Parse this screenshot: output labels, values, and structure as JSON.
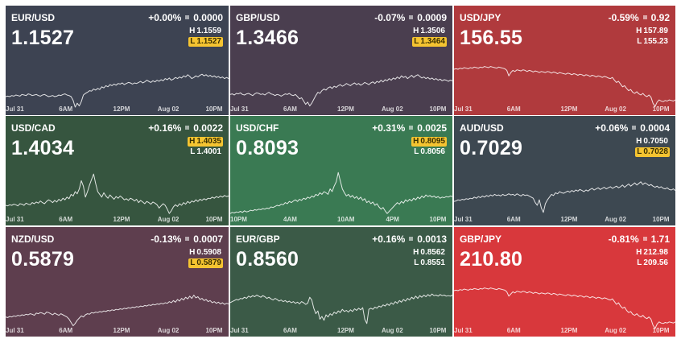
{
  "tiles": [
    {
      "pair": "EUR/USD",
      "change_pct": "+0.00%",
      "change_abs": "0.0000",
      "price": "1.1527",
      "high": "1.1559",
      "low": "1.1527",
      "marked": "low",
      "bg": "#3d4352",
      "series": [
        0.22,
        0.23,
        0.22,
        0.24,
        0.23,
        0.25,
        0.24,
        0.23,
        0.26,
        0.25,
        0.24,
        0.27,
        0.26,
        0.24,
        0.25,
        0.26,
        0.24,
        0.23,
        0.25,
        0.26,
        0.24,
        0.22,
        0.23,
        0.24,
        0.22,
        0.23,
        0.25,
        0.24,
        0.26,
        0.27,
        0.25,
        0.24,
        0.22,
        0.15,
        0.03,
        0.1,
        0.05,
        0.13,
        0.25,
        0.28,
        0.3,
        0.33,
        0.32,
        0.36,
        0.34,
        0.37,
        0.35,
        0.4,
        0.38,
        0.42,
        0.4,
        0.44,
        0.42,
        0.45,
        0.43,
        0.46,
        0.45,
        0.47,
        0.44,
        0.46,
        0.48,
        0.47,
        0.45,
        0.47,
        0.46,
        0.48,
        0.5,
        0.47,
        0.49,
        0.52,
        0.5,
        0.48,
        0.51,
        0.49,
        0.52,
        0.5,
        0.53,
        0.51,
        0.55,
        0.53,
        0.56,
        0.52,
        0.54,
        0.57,
        0.55,
        0.58,
        0.56,
        0.6,
        0.58,
        0.62,
        0.59,
        0.55,
        0.57,
        0.6,
        0.58,
        0.61,
        0.63,
        0.6,
        0.62,
        0.59,
        0.61,
        0.58,
        0.6,
        0.57,
        0.59,
        0.56,
        0.58,
        0.55,
        0.57,
        0.55
      ],
      "xlabels": [
        "Jul 31",
        "6AM",
        "12PM",
        "Aug 02",
        "10PM"
      ]
    },
    {
      "pair": "GBP/USD",
      "change_pct": "-0.07%",
      "change_abs": "0.0009",
      "price": "1.3466",
      "high": "1.3506",
      "low": "1.3464",
      "marked": "low",
      "bg": "#4a3e4f",
      "series": [
        0.26,
        0.27,
        0.25,
        0.28,
        0.27,
        0.29,
        0.26,
        0.25,
        0.27,
        0.28,
        0.26,
        0.24,
        0.27,
        0.29,
        0.28,
        0.26,
        0.27,
        0.25,
        0.28,
        0.3,
        0.27,
        0.26,
        0.24,
        0.26,
        0.25,
        0.23,
        0.25,
        0.27,
        0.26,
        0.28,
        0.25,
        0.24,
        0.26,
        0.22,
        0.18,
        0.2,
        0.14,
        0.08,
        0.12,
        0.05,
        0.1,
        0.17,
        0.24,
        0.3,
        0.28,
        0.33,
        0.36,
        0.34,
        0.38,
        0.4,
        0.37,
        0.41,
        0.39,
        0.42,
        0.44,
        0.41,
        0.43,
        0.46,
        0.44,
        0.42,
        0.45,
        0.47,
        0.44,
        0.46,
        0.43,
        0.45,
        0.48,
        0.46,
        0.44,
        0.47,
        0.49,
        0.46,
        0.5,
        0.48,
        0.52,
        0.49,
        0.53,
        0.51,
        0.55,
        0.52,
        0.56,
        0.54,
        0.58,
        0.55,
        0.6,
        0.57,
        0.59,
        0.55,
        0.58,
        0.61,
        0.57,
        0.6,
        0.62,
        0.59,
        0.56,
        0.58,
        0.55,
        0.57,
        0.54,
        0.56,
        0.53,
        0.55,
        0.52,
        0.54,
        0.51,
        0.53,
        0.52,
        0.5,
        0.52,
        0.51
      ],
      "xlabels": [
        "Jul 31",
        "6AM",
        "12PM",
        "Aug 02",
        "10PM"
      ]
    },
    {
      "pair": "USD/JPY",
      "change_pct": "-0.59%",
      "change_abs": "0.92",
      "price": "156.55",
      "high": "157.89",
      "low": "155.23",
      "marked": "none",
      "bg": "#b03a3d",
      "series": [
        0.72,
        0.73,
        0.72,
        0.74,
        0.73,
        0.75,
        0.74,
        0.73,
        0.75,
        0.74,
        0.76,
        0.75,
        0.74,
        0.76,
        0.75,
        0.77,
        0.76,
        0.75,
        0.77,
        0.76,
        0.75,
        0.74,
        0.76,
        0.75,
        0.74,
        0.73,
        0.7,
        0.6,
        0.66,
        0.7,
        0.68,
        0.71,
        0.7,
        0.69,
        0.71,
        0.7,
        0.68,
        0.7,
        0.69,
        0.67,
        0.69,
        0.68,
        0.66,
        0.68,
        0.67,
        0.66,
        0.68,
        0.67,
        0.65,
        0.67,
        0.66,
        0.64,
        0.66,
        0.65,
        0.64,
        0.63,
        0.65,
        0.64,
        0.62,
        0.64,
        0.63,
        0.61,
        0.63,
        0.62,
        0.6,
        0.62,
        0.61,
        0.59,
        0.61,
        0.6,
        0.58,
        0.6,
        0.59,
        0.57,
        0.59,
        0.58,
        0.56,
        0.55,
        0.57,
        0.52,
        0.48,
        0.5,
        0.45,
        0.4,
        0.42,
        0.37,
        0.33,
        0.35,
        0.3,
        0.28,
        0.31,
        0.27,
        0.25,
        0.28,
        0.24,
        0.22,
        0.25,
        0.21,
        0.1,
        0.04,
        0.12,
        0.16,
        0.14,
        0.13,
        0.15,
        0.14,
        0.16,
        0.15,
        0.14,
        0.16
      ],
      "xlabels": [
        "Jul 31",
        "6AM",
        "12PM",
        "Aug 02",
        "10PM"
      ]
    },
    {
      "pair": "USD/CAD",
      "change_pct": "+0.16%",
      "change_abs": "0.0022",
      "price": "1.4034",
      "high": "1.4035",
      "low": "1.4001",
      "marked": "high",
      "bg": "#36553f",
      "series": [
        0.25,
        0.24,
        0.26,
        0.25,
        0.27,
        0.26,
        0.24,
        0.28,
        0.27,
        0.25,
        0.29,
        0.27,
        0.26,
        0.3,
        0.28,
        0.31,
        0.29,
        0.33,
        0.3,
        0.28,
        0.32,
        0.35,
        0.33,
        0.3,
        0.34,
        0.31,
        0.36,
        0.33,
        0.38,
        0.35,
        0.4,
        0.37,
        0.45,
        0.42,
        0.5,
        0.46,
        0.55,
        0.7,
        0.6,
        0.4,
        0.5,
        0.62,
        0.72,
        0.82,
        0.65,
        0.5,
        0.45,
        0.4,
        0.48,
        0.42,
        0.38,
        0.44,
        0.4,
        0.36,
        0.41,
        0.38,
        0.42,
        0.39,
        0.35,
        0.37,
        0.34,
        0.38,
        0.36,
        0.33,
        0.36,
        0.3,
        0.34,
        0.31,
        0.28,
        0.32,
        0.3,
        0.27,
        0.31,
        0.29,
        0.26,
        0.2,
        0.24,
        0.28,
        0.25,
        0.18,
        0.1,
        0.15,
        0.22,
        0.26,
        0.23,
        0.28,
        0.25,
        0.3,
        0.27,
        0.32,
        0.29,
        0.33,
        0.31,
        0.35,
        0.32,
        0.36,
        0.34,
        0.37,
        0.35,
        0.38,
        0.37,
        0.4,
        0.38,
        0.41,
        0.39,
        0.42,
        0.4,
        0.43,
        0.41,
        0.42
      ],
      "xlabels": [
        "Jul 31",
        "6AM",
        "12PM",
        "Aug 02",
        "10PM"
      ]
    },
    {
      "pair": "USD/CHF",
      "change_pct": "+0.31%",
      "change_abs": "0.0025",
      "price": "0.8093",
      "high": "0.8095",
      "low": "0.8056",
      "marked": "high",
      "bg": "#3a7a53",
      "series": [
        0.1,
        0.12,
        0.11,
        0.13,
        0.12,
        0.14,
        0.12,
        0.15,
        0.13,
        0.14,
        0.16,
        0.15,
        0.17,
        0.16,
        0.18,
        0.17,
        0.19,
        0.18,
        0.2,
        0.19,
        0.22,
        0.21,
        0.23,
        0.25,
        0.24,
        0.27,
        0.26,
        0.3,
        0.28,
        0.32,
        0.3,
        0.33,
        0.35,
        0.32,
        0.36,
        0.34,
        0.38,
        0.36,
        0.4,
        0.38,
        0.42,
        0.4,
        0.45,
        0.43,
        0.48,
        0.45,
        0.5,
        0.48,
        0.45,
        0.55,
        0.5,
        0.6,
        0.68,
        0.85,
        0.7,
        0.55,
        0.48,
        0.42,
        0.45,
        0.4,
        0.43,
        0.38,
        0.41,
        0.36,
        0.4,
        0.34,
        0.37,
        0.3,
        0.33,
        0.28,
        0.31,
        0.25,
        0.28,
        0.22,
        0.18,
        0.21,
        0.15,
        0.1,
        0.14,
        0.18,
        0.22,
        0.26,
        0.3,
        0.27,
        0.32,
        0.29,
        0.35,
        0.32,
        0.36,
        0.33,
        0.38,
        0.35,
        0.4,
        0.37,
        0.42,
        0.39,
        0.44,
        0.41,
        0.43,
        0.4,
        0.42,
        0.39,
        0.41,
        0.38,
        0.4,
        0.39,
        0.41,
        0.4,
        0.42,
        0.41
      ],
      "xlabels": [
        "10PM",
        "4AM",
        "10AM",
        "4PM",
        "10PM"
      ]
    },
    {
      "pair": "AUD/USD",
      "change_pct": "+0.06%",
      "change_abs": "0.0004",
      "price": "0.7029",
      "high": "0.7050",
      "low": "0.7028",
      "marked": "low",
      "bg": "#3d4851",
      "series": [
        0.32,
        0.33,
        0.35,
        0.34,
        0.36,
        0.35,
        0.37,
        0.36,
        0.38,
        0.37,
        0.4,
        0.38,
        0.41,
        0.39,
        0.42,
        0.4,
        0.43,
        0.41,
        0.44,
        0.42,
        0.45,
        0.43,
        0.44,
        0.42,
        0.45,
        0.43,
        0.44,
        0.46,
        0.44,
        0.45,
        0.43,
        0.46,
        0.44,
        0.42,
        0.45,
        0.43,
        0.44,
        0.42,
        0.4,
        0.38,
        0.3,
        0.25,
        0.35,
        0.2,
        0.12,
        0.28,
        0.35,
        0.4,
        0.45,
        0.43,
        0.48,
        0.46,
        0.5,
        0.48,
        0.47,
        0.49,
        0.51,
        0.49,
        0.52,
        0.5,
        0.53,
        0.51,
        0.54,
        0.52,
        0.5,
        0.53,
        0.51,
        0.54,
        0.56,
        0.53,
        0.55,
        0.57,
        0.54,
        0.56,
        0.58,
        0.55,
        0.57,
        0.59,
        0.56,
        0.58,
        0.6,
        0.57,
        0.59,
        0.62,
        0.58,
        0.61,
        0.64,
        0.6,
        0.63,
        0.66,
        0.62,
        0.65,
        0.68,
        0.63,
        0.66,
        0.64,
        0.61,
        0.63,
        0.6,
        0.58,
        0.6,
        0.57,
        0.59,
        0.56,
        0.55,
        0.57,
        0.54,
        0.53,
        0.55,
        0.52
      ],
      "xlabels": [
        "Jul 31",
        "6AM",
        "12PM",
        "Aug 02",
        "10PM"
      ]
    },
    {
      "pair": "NZD/USD",
      "change_pct": "-0.13%",
      "change_abs": "0.0007",
      "price": "0.5879",
      "high": "0.5908",
      "low": "0.5879",
      "marked": "low",
      "bg": "#5e3e4e",
      "series": [
        0.24,
        0.23,
        0.25,
        0.24,
        0.26,
        0.25,
        0.27,
        0.26,
        0.28,
        0.27,
        0.29,
        0.28,
        0.3,
        0.29,
        0.27,
        0.31,
        0.3,
        0.32,
        0.31,
        0.29,
        0.33,
        0.32,
        0.3,
        0.28,
        0.31,
        0.29,
        0.27,
        0.3,
        0.28,
        0.26,
        0.24,
        0.2,
        0.14,
        0.08,
        0.12,
        0.18,
        0.22,
        0.26,
        0.24,
        0.28,
        0.3,
        0.29,
        0.32,
        0.31,
        0.33,
        0.32,
        0.34,
        0.33,
        0.35,
        0.34,
        0.36,
        0.35,
        0.37,
        0.36,
        0.38,
        0.37,
        0.39,
        0.38,
        0.4,
        0.39,
        0.41,
        0.4,
        0.42,
        0.41,
        0.43,
        0.42,
        0.44,
        0.43,
        0.45,
        0.44,
        0.46,
        0.45,
        0.47,
        0.46,
        0.48,
        0.47,
        0.49,
        0.48,
        0.5,
        0.49,
        0.52,
        0.5,
        0.54,
        0.51,
        0.56,
        0.53,
        0.58,
        0.55,
        0.6,
        0.57,
        0.62,
        0.58,
        0.64,
        0.59,
        0.61,
        0.56,
        0.58,
        0.54,
        0.56,
        0.52,
        0.54,
        0.5,
        0.52,
        0.49,
        0.51,
        0.48,
        0.5,
        0.47,
        0.49,
        0.48
      ],
      "xlabels": [
        "Jul 31",
        "6AM",
        "12PM",
        "Aug 02",
        "10PM"
      ]
    },
    {
      "pair": "EUR/GBP",
      "change_pct": "+0.16%",
      "change_abs": "0.0013",
      "price": "0.8560",
      "high": "0.8562",
      "low": "0.8551",
      "marked": "none",
      "bg": "#3b5a47",
      "series": [
        0.5,
        0.52,
        0.54,
        0.56,
        0.55,
        0.58,
        0.57,
        0.6,
        0.58,
        0.62,
        0.6,
        0.63,
        0.61,
        0.64,
        0.62,
        0.6,
        0.63,
        0.61,
        0.58,
        0.6,
        0.57,
        0.55,
        0.58,
        0.56,
        0.53,
        0.55,
        0.52,
        0.54,
        0.51,
        0.53,
        0.5,
        0.52,
        0.49,
        0.51,
        0.48,
        0.52,
        0.5,
        0.47,
        0.49,
        0.6,
        0.55,
        0.4,
        0.3,
        0.35,
        0.2,
        0.25,
        0.18,
        0.28,
        0.24,
        0.3,
        0.27,
        0.33,
        0.3,
        0.35,
        0.32,
        0.38,
        0.34,
        0.36,
        0.33,
        0.37,
        0.34,
        0.39,
        0.36,
        0.4,
        0.37,
        0.41,
        0.2,
        0.12,
        0.38,
        0.4,
        0.38,
        0.42,
        0.4,
        0.44,
        0.42,
        0.46,
        0.44,
        0.48,
        0.45,
        0.5,
        0.47,
        0.52,
        0.49,
        0.54,
        0.51,
        0.56,
        0.53,
        0.58,
        0.55,
        0.6,
        0.57,
        0.62,
        0.58,
        0.63,
        0.6,
        0.64,
        0.61,
        0.65,
        0.62,
        0.66,
        0.63,
        0.64,
        0.62,
        0.65,
        0.63,
        0.64,
        0.62,
        0.63,
        0.62,
        0.64
      ],
      "xlabels": [
        "Jul 31",
        "6AM",
        "12PM",
        "Aug 02",
        "10PM"
      ]
    },
    {
      "pair": "GBP/JPY",
      "change_pct": "-0.81%",
      "change_abs": "1.71",
      "price": "210.80",
      "high": "212.98",
      "low": "209.56",
      "marked": "none",
      "bg": "#d8383c",
      "series": [
        0.72,
        0.73,
        0.72,
        0.74,
        0.73,
        0.75,
        0.74,
        0.73,
        0.75,
        0.74,
        0.76,
        0.75,
        0.74,
        0.76,
        0.75,
        0.77,
        0.76,
        0.75,
        0.77,
        0.76,
        0.75,
        0.74,
        0.76,
        0.75,
        0.74,
        0.73,
        0.7,
        0.62,
        0.66,
        0.7,
        0.68,
        0.71,
        0.7,
        0.69,
        0.71,
        0.7,
        0.68,
        0.7,
        0.69,
        0.67,
        0.69,
        0.68,
        0.66,
        0.68,
        0.67,
        0.66,
        0.68,
        0.67,
        0.65,
        0.67,
        0.66,
        0.64,
        0.66,
        0.65,
        0.64,
        0.63,
        0.65,
        0.64,
        0.62,
        0.64,
        0.63,
        0.61,
        0.63,
        0.62,
        0.6,
        0.62,
        0.61,
        0.59,
        0.61,
        0.6,
        0.58,
        0.6,
        0.59,
        0.57,
        0.59,
        0.58,
        0.56,
        0.55,
        0.57,
        0.52,
        0.47,
        0.5,
        0.44,
        0.4,
        0.42,
        0.36,
        0.32,
        0.34,
        0.29,
        0.27,
        0.3,
        0.26,
        0.24,
        0.27,
        0.23,
        0.21,
        0.24,
        0.2,
        0.09,
        0.03,
        0.11,
        0.15,
        0.13,
        0.12,
        0.14,
        0.13,
        0.15,
        0.14,
        0.13,
        0.15
      ],
      "xlabels": [
        "Jul 31",
        "6AM",
        "12PM",
        "Aug 02",
        "10PM"
      ]
    }
  ]
}
